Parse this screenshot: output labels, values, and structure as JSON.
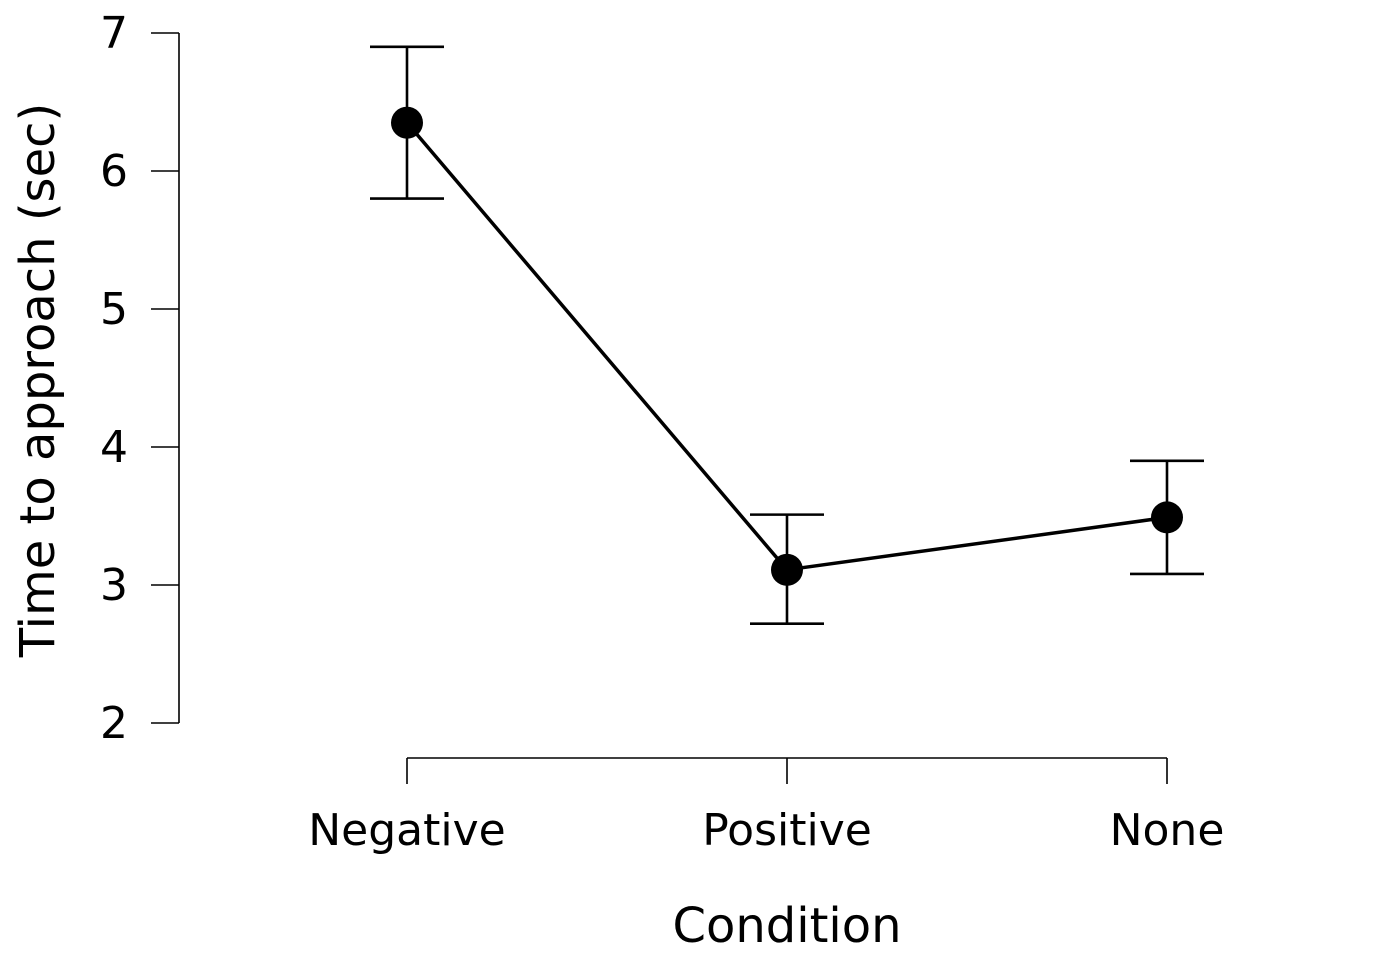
{
  "chart_data": {
    "type": "line",
    "categories": [
      "Negative",
      "Positive",
      "None"
    ],
    "series": [
      {
        "values": [
          6.35,
          3.11,
          3.49
        ],
        "error_low": [
          5.8,
          2.72,
          3.08
        ],
        "error_high": [
          6.9,
          3.51,
          3.9
        ]
      }
    ],
    "xlabel": "Condition",
    "ylabel": "Time to approach (sec)",
    "ylim": [
      2,
      7
    ],
    "yticks": [
      "2",
      "3",
      "4",
      "5",
      "6",
      "7"
    ],
    "grid": false,
    "marker": "filled-circle",
    "error_bars": true
  }
}
